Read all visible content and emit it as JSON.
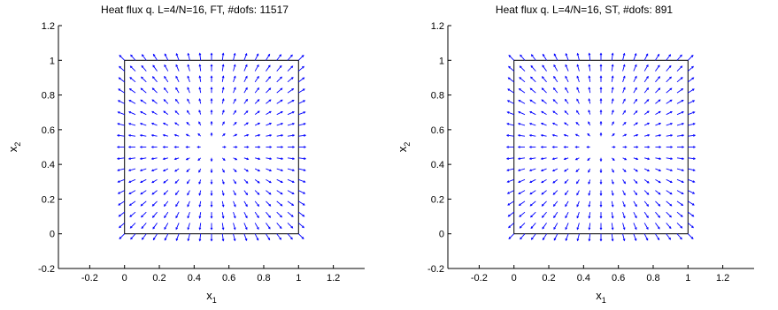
{
  "chart_data": [
    {
      "type": "quiver",
      "title": "Heat flux q. L=4/N=16, FT, #dofs: 11517",
      "xlabel": "x",
      "xlabel_sub": "1",
      "ylabel": "x",
      "ylabel_sub": "2",
      "xlim": [
        -0.38,
        1.38
      ],
      "ylim": [
        -0.2,
        1.2
      ],
      "xticks": [
        "-0.2",
        "0",
        "0.2",
        "0.4",
        "0.6",
        "0.8",
        "1",
        "1.2"
      ],
      "yticks": [
        "-0.2",
        "0",
        "0.2",
        "0.4",
        "0.6",
        "0.8",
        "1",
        "1.2"
      ],
      "domain_box": [
        0,
        1,
        0,
        1
      ],
      "field": "radial outward flux from center (0.5, 0.5)",
      "grid_n": 17,
      "arrow_color": "#0000ff",
      "box_color": "#000000"
    },
    {
      "type": "quiver",
      "title": "Heat flux q. L=4/N=16, ST, #dofs: 891",
      "xlabel": "x",
      "xlabel_sub": "1",
      "ylabel": "x",
      "ylabel_sub": "2",
      "xlim": [
        -0.38,
        1.38
      ],
      "ylim": [
        -0.2,
        1.2
      ],
      "xticks": [
        "-0.2",
        "0",
        "0.2",
        "0.4",
        "0.6",
        "0.8",
        "1",
        "1.2"
      ],
      "yticks": [
        "-0.2",
        "0",
        "0.2",
        "0.4",
        "0.6",
        "0.8",
        "1",
        "1.2"
      ],
      "domain_box": [
        0,
        1,
        0,
        1
      ],
      "field": "radial outward flux from center (0.5, 0.5)",
      "grid_n": 17,
      "arrow_color": "#0000ff",
      "box_color": "#000000"
    }
  ]
}
